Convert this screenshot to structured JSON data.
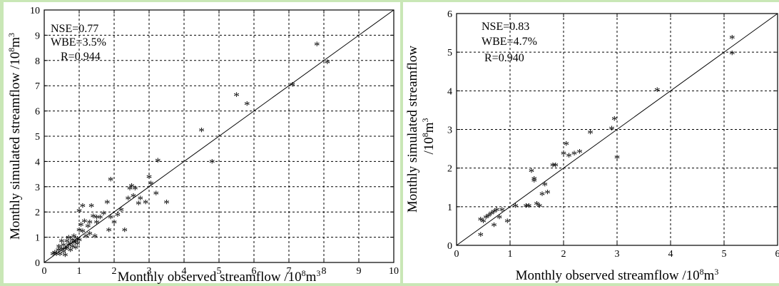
{
  "chart_data": [
    {
      "type": "scatter",
      "title": "",
      "xlabel": "Monthly observed streamflow /10",
      "xlabel_sup": "8",
      "xlabel_tail": "m",
      "xlabel_tail_sup": "3",
      "ylabel": "Monthly simulated streamflow /10",
      "ylabel_sup": "8",
      "ylabel_tail": "m",
      "ylabel_tail_sup": "3",
      "xlim": [
        0,
        10
      ],
      "ylim": [
        0,
        10
      ],
      "xticks": [
        "0",
        "1",
        "2",
        "3",
        "4",
        "5",
        "6",
        "7",
        "8",
        "9",
        "10"
      ],
      "yticks": [
        "0",
        "1",
        "2",
        "3",
        "4",
        "5",
        "6",
        "7",
        "8",
        "9",
        "10"
      ],
      "grid": "dashed",
      "reference_line": "1:1",
      "marker": "*",
      "annotations": [
        "NSE=0.77",
        "WBE=3.5%",
        "R=0.944"
      ],
      "points": [
        [
          0.25,
          0.3
        ],
        [
          0.3,
          0.35
        ],
        [
          0.35,
          0.3
        ],
        [
          0.4,
          0.45
        ],
        [
          0.42,
          0.6
        ],
        [
          0.45,
          0.3
        ],
        [
          0.5,
          0.5
        ],
        [
          0.5,
          0.8
        ],
        [
          0.55,
          0.4
        ],
        [
          0.55,
          0.65
        ],
        [
          0.6,
          0.5
        ],
        [
          0.6,
          0.25
        ],
        [
          0.65,
          0.8
        ],
        [
          0.65,
          0.55
        ],
        [
          0.7,
          0.65
        ],
        [
          0.7,
          0.95
        ],
        [
          0.75,
          0.7
        ],
        [
          0.75,
          0.45
        ],
        [
          0.8,
          0.85
        ],
        [
          0.8,
          0.6
        ],
        [
          0.85,
          0.75
        ],
        [
          0.85,
          1.0
        ],
        [
          0.9,
          0.8
        ],
        [
          0.9,
          0.55
        ],
        [
          0.95,
          0.9
        ],
        [
          0.95,
          0.7
        ],
        [
          1.0,
          1.25
        ],
        [
          1.0,
          2.0
        ],
        [
          1.0,
          0.85
        ],
        [
          1.05,
          1.45
        ],
        [
          1.1,
          2.2
        ],
        [
          1.1,
          1.2
        ],
        [
          1.15,
          1.6
        ],
        [
          1.2,
          1.0
        ],
        [
          1.25,
          1.4
        ],
        [
          1.3,
          1.55
        ],
        [
          1.3,
          1.1
        ],
        [
          1.35,
          2.2
        ],
        [
          1.4,
          1.8
        ],
        [
          1.45,
          1.0
        ],
        [
          1.5,
          1.55
        ],
        [
          1.5,
          1.75
        ],
        [
          1.6,
          1.75
        ],
        [
          1.7,
          1.9
        ],
        [
          1.8,
          2.35
        ],
        [
          1.85,
          1.25
        ],
        [
          1.9,
          1.75
        ],
        [
          1.9,
          3.25
        ],
        [
          2.0,
          1.55
        ],
        [
          2.1,
          1.85
        ],
        [
          2.2,
          2.05
        ],
        [
          2.3,
          1.25
        ],
        [
          2.4,
          2.5
        ],
        [
          2.45,
          2.9
        ],
        [
          2.5,
          3.0
        ],
        [
          2.55,
          2.6
        ],
        [
          2.6,
          2.9
        ],
        [
          2.7,
          2.3
        ],
        [
          2.75,
          2.5
        ],
        [
          2.9,
          2.35
        ],
        [
          3.0,
          3.35
        ],
        [
          3.05,
          3.1
        ],
        [
          3.2,
          2.7
        ],
        [
          3.25,
          4.0
        ],
        [
          3.5,
          2.35
        ],
        [
          4.5,
          5.2
        ],
        [
          4.8,
          3.95
        ],
        [
          5.5,
          6.6
        ],
        [
          5.8,
          6.25
        ],
        [
          7.1,
          7.0
        ],
        [
          7.8,
          8.6
        ],
        [
          8.1,
          7.9
        ]
      ]
    },
    {
      "type": "scatter",
      "title": "",
      "xlabel": "Monthly observed streamflow /10",
      "xlabel_sup": "8",
      "xlabel_tail": "m",
      "xlabel_tail_sup": "3",
      "ylabel_line1": "Monthly simulated streamflow",
      "ylabel_line2": "/10",
      "ylabel_sup": "8",
      "ylabel_tail": "m",
      "ylabel_tail_sup": "3",
      "xlim": [
        0,
        6
      ],
      "ylim": [
        0,
        6
      ],
      "xticks": [
        "0",
        "1",
        "2",
        "3",
        "4",
        "5",
        "6"
      ],
      "yticks": [
        "0",
        "1",
        "2",
        "3",
        "4",
        "5",
        "6"
      ],
      "grid": "dashed",
      "reference_line": "1:1",
      "marker": "*",
      "annotations": [
        "NSE=0.83",
        "WBE=4.7%",
        "R=0.940"
      ],
      "points": [
        [
          0.45,
          0.25
        ],
        [
          0.45,
          0.65
        ],
        [
          0.5,
          0.6
        ],
        [
          0.55,
          0.7
        ],
        [
          0.6,
          0.75
        ],
        [
          0.65,
          0.8
        ],
        [
          0.7,
          0.85
        ],
        [
          0.7,
          0.5
        ],
        [
          0.75,
          0.9
        ],
        [
          0.8,
          0.7
        ],
        [
          0.85,
          0.9
        ],
        [
          0.95,
          0.6
        ],
        [
          1.1,
          1.0
        ],
        [
          1.3,
          1.0
        ],
        [
          1.35,
          1.0
        ],
        [
          1.4,
          1.9
        ],
        [
          1.45,
          1.7
        ],
        [
          1.45,
          1.65
        ],
        [
          1.5,
          1.05
        ],
        [
          1.55,
          1.0
        ],
        [
          1.6,
          1.3
        ],
        [
          1.65,
          1.55
        ],
        [
          1.7,
          1.35
        ],
        [
          1.8,
          2.05
        ],
        [
          1.85,
          2.05
        ],
        [
          2.0,
          2.35
        ],
        [
          2.05,
          2.6
        ],
        [
          2.1,
          2.3
        ],
        [
          2.2,
          2.35
        ],
        [
          2.3,
          2.4
        ],
        [
          2.5,
          2.9
        ],
        [
          2.9,
          3.0
        ],
        [
          2.95,
          3.25
        ],
        [
          3.0,
          2.25
        ],
        [
          3.75,
          4.0
        ],
        [
          5.15,
          5.35
        ],
        [
          5.15,
          4.95
        ]
      ]
    }
  ]
}
